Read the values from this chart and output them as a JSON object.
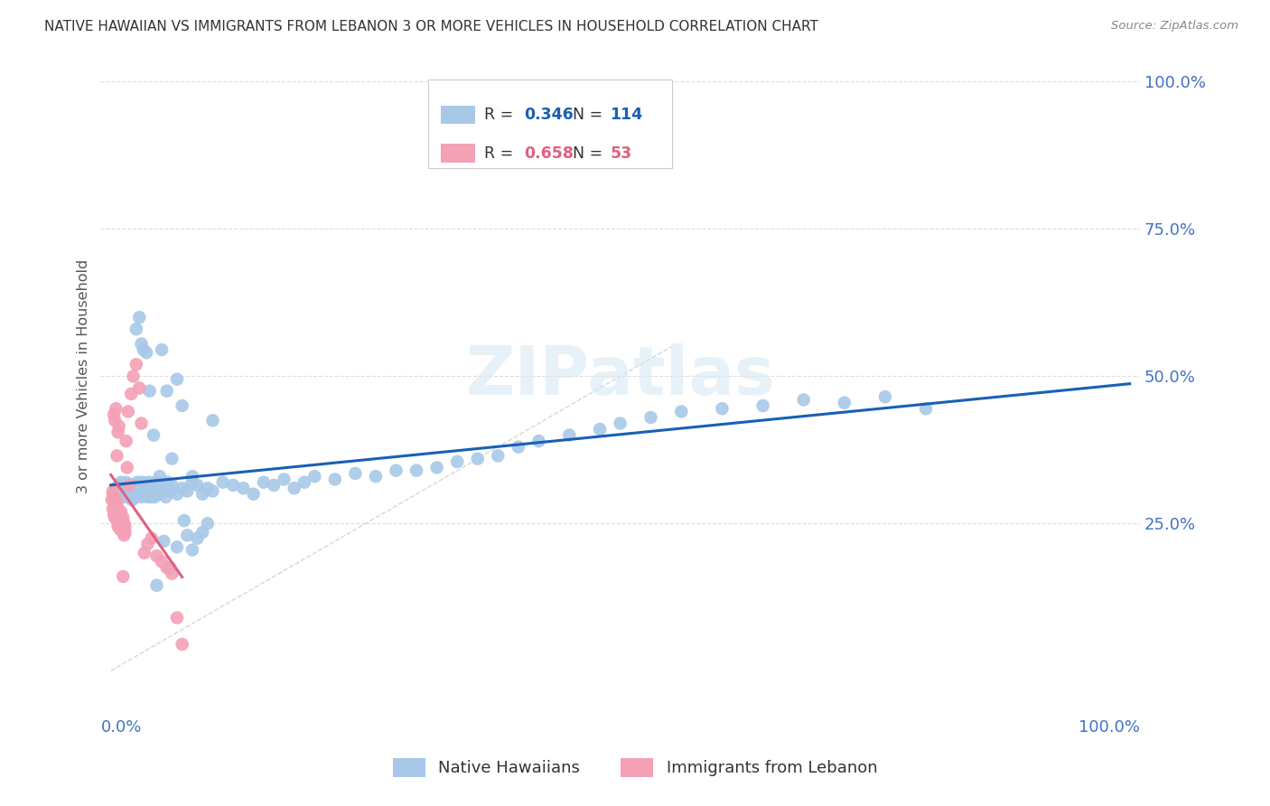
{
  "title": "NATIVE HAWAIIAN VS IMMIGRANTS FROM LEBANON 3 OR MORE VEHICLES IN HOUSEHOLD CORRELATION CHART",
  "source": "Source: ZipAtlas.com",
  "ylabel": "3 or more Vehicles in Household",
  "watermark": "ZIPatlas",
  "legend_blue_R": "0.346",
  "legend_blue_N": "114",
  "legend_pink_R": "0.658",
  "legend_pink_N": "53",
  "legend_blue_label": "Native Hawaiians",
  "legend_pink_label": "Immigrants from Lebanon",
  "blue_color": "#A8C8E8",
  "pink_color": "#F4A0B5",
  "trend_blue_color": "#1A5FB4",
  "trend_pink_color": "#E06080",
  "diagonal_color": "#CCCCCC",
  "blue_x": [
    0.003,
    0.005,
    0.006,
    0.007,
    0.008,
    0.009,
    0.01,
    0.011,
    0.012,
    0.013,
    0.014,
    0.015,
    0.016,
    0.017,
    0.018,
    0.019,
    0.02,
    0.021,
    0.022,
    0.023,
    0.024,
    0.025,
    0.026,
    0.027,
    0.028,
    0.03,
    0.031,
    0.032,
    0.033,
    0.034,
    0.035,
    0.036,
    0.037,
    0.038,
    0.039,
    0.04,
    0.042,
    0.043,
    0.044,
    0.045,
    0.046,
    0.048,
    0.05,
    0.052,
    0.054,
    0.056,
    0.058,
    0.06,
    0.065,
    0.07,
    0.075,
    0.08,
    0.085,
    0.09,
    0.095,
    0.1,
    0.11,
    0.12,
    0.13,
    0.14,
    0.15,
    0.16,
    0.17,
    0.18,
    0.19,
    0.2,
    0.22,
    0.24,
    0.26,
    0.28,
    0.3,
    0.32,
    0.34,
    0.36,
    0.38,
    0.4,
    0.42,
    0.45,
    0.48,
    0.5,
    0.53,
    0.56,
    0.6,
    0.64,
    0.68,
    0.72,
    0.76,
    0.8,
    0.025,
    0.03,
    0.035,
    0.04,
    0.045,
    0.05,
    0.055,
    0.06,
    0.065,
    0.07,
    0.075,
    0.08,
    0.085,
    0.09,
    0.095,
    0.1,
    0.028,
    0.032,
    0.038,
    0.042,
    0.048,
    0.052,
    0.058,
    0.065,
    0.072,
    0.08
  ],
  "blue_y": [
    0.3,
    0.31,
    0.29,
    0.305,
    0.315,
    0.295,
    0.32,
    0.3,
    0.295,
    0.31,
    0.305,
    0.32,
    0.3,
    0.295,
    0.31,
    0.315,
    0.305,
    0.29,
    0.315,
    0.3,
    0.31,
    0.295,
    0.32,
    0.305,
    0.31,
    0.295,
    0.32,
    0.315,
    0.305,
    0.3,
    0.31,
    0.295,
    0.32,
    0.305,
    0.315,
    0.3,
    0.31,
    0.295,
    0.32,
    0.305,
    0.315,
    0.3,
    0.31,
    0.305,
    0.295,
    0.32,
    0.305,
    0.315,
    0.3,
    0.31,
    0.305,
    0.32,
    0.315,
    0.3,
    0.31,
    0.305,
    0.32,
    0.315,
    0.31,
    0.3,
    0.32,
    0.315,
    0.325,
    0.31,
    0.32,
    0.33,
    0.325,
    0.335,
    0.33,
    0.34,
    0.34,
    0.345,
    0.355,
    0.36,
    0.365,
    0.38,
    0.39,
    0.4,
    0.41,
    0.42,
    0.43,
    0.44,
    0.445,
    0.45,
    0.46,
    0.455,
    0.465,
    0.445,
    0.58,
    0.555,
    0.54,
    0.295,
    0.145,
    0.545,
    0.475,
    0.36,
    0.495,
    0.45,
    0.23,
    0.205,
    0.225,
    0.235,
    0.25,
    0.425,
    0.6,
    0.545,
    0.475,
    0.4,
    0.33,
    0.22,
    0.175,
    0.21,
    0.255,
    0.33
  ],
  "pink_x": [
    0.001,
    0.002,
    0.002,
    0.003,
    0.003,
    0.004,
    0.004,
    0.005,
    0.005,
    0.006,
    0.006,
    0.007,
    0.007,
    0.008,
    0.008,
    0.009,
    0.009,
    0.01,
    0.01,
    0.011,
    0.011,
    0.012,
    0.012,
    0.013,
    0.013,
    0.014,
    0.014,
    0.015,
    0.016,
    0.017,
    0.018,
    0.02,
    0.022,
    0.025,
    0.028,
    0.03,
    0.033,
    0.036,
    0.04,
    0.045,
    0.05,
    0.055,
    0.06,
    0.065,
    0.07,
    0.003,
    0.004,
    0.005,
    0.006,
    0.007,
    0.008,
    0.002,
    0.012
  ],
  "pink_y": [
    0.29,
    0.305,
    0.275,
    0.295,
    0.265,
    0.28,
    0.26,
    0.29,
    0.27,
    0.285,
    0.255,
    0.275,
    0.245,
    0.26,
    0.265,
    0.25,
    0.24,
    0.27,
    0.245,
    0.255,
    0.24,
    0.26,
    0.235,
    0.25,
    0.23,
    0.245,
    0.235,
    0.39,
    0.345,
    0.44,
    0.315,
    0.47,
    0.5,
    0.52,
    0.48,
    0.42,
    0.2,
    0.215,
    0.225,
    0.195,
    0.185,
    0.175,
    0.165,
    0.09,
    0.045,
    0.435,
    0.425,
    0.445,
    0.365,
    0.405,
    0.415,
    0.3,
    0.16
  ]
}
